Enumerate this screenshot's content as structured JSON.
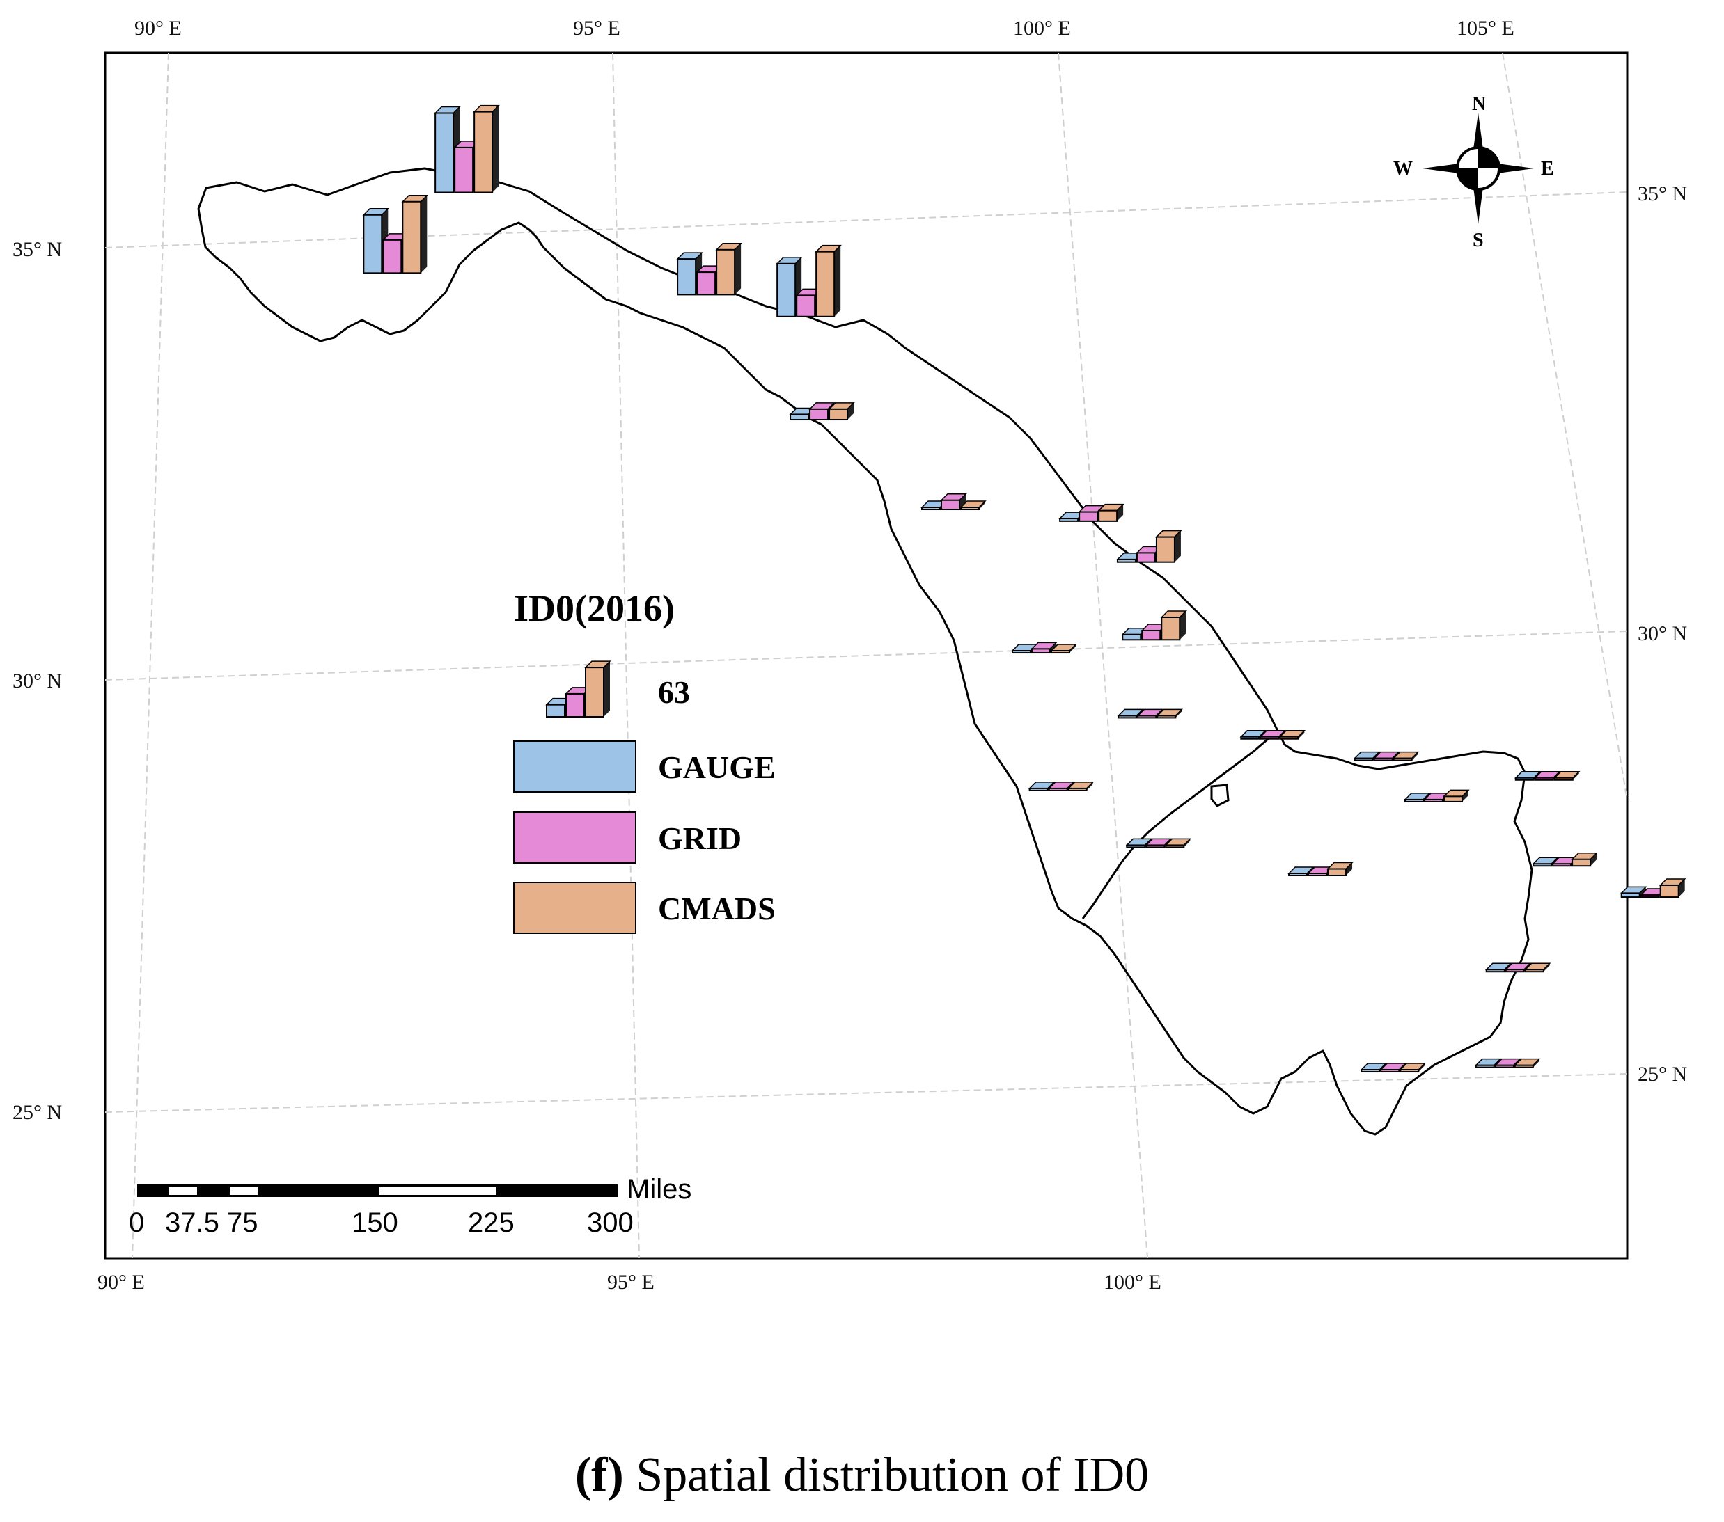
{
  "map": {
    "lon_ticks_top": [
      "90° E",
      "95° E",
      "100° E",
      "105° E"
    ],
    "lon_ticks_bottom": [
      "90° E",
      "95° E",
      "100° E"
    ],
    "lat_ticks_left": [
      "35° N",
      "30° N",
      "25° N"
    ],
    "lat_ticks_right": [
      "35° N",
      "30° N",
      "25° N"
    ]
  },
  "compass": {
    "n": "N",
    "s": "S",
    "e": "E",
    "w": "W"
  },
  "legend": {
    "title": "ID0(2016)",
    "sample_value": "63",
    "items": [
      {
        "label": "GAUGE",
        "color": "#9dc3e6"
      },
      {
        "label": "GRID",
        "color": "#e58ad6"
      },
      {
        "label": "CMADS",
        "color": "#e6b08a"
      }
    ]
  },
  "scale_bar": {
    "unit": "Miles",
    "labels": [
      "0",
      "37.5",
      "75",
      "150",
      "225",
      "300"
    ]
  },
  "caption": {
    "letter": "(f)",
    "text": " Spatial distribution of ID0"
  },
  "chart_data": {
    "type": "bar",
    "title": "ID0(2016)",
    "reference_value": 63,
    "series_names": [
      "GAUGE",
      "GRID",
      "CMADS"
    ],
    "stations": [
      {
        "lon": 92.5,
        "lat": 34.6,
        "values": [
          44,
          25,
          54
        ]
      },
      {
        "lon": 93.3,
        "lat": 35.5,
        "values": [
          60,
          34,
          61
        ]
      },
      {
        "lon": 96.0,
        "lat": 34.2,
        "values": [
          27,
          17,
          34
        ]
      },
      {
        "lon": 97.1,
        "lat": 33.9,
        "values": [
          40,
          16,
          49
        ]
      },
      {
        "lon": 97.2,
        "lat": 32.7,
        "values": [
          4,
          8,
          8
        ]
      },
      {
        "lon": 98.6,
        "lat": 31.6,
        "values": [
          1,
          7,
          1
        ]
      },
      {
        "lon": 100.1,
        "lat": 31.4,
        "values": [
          2,
          7,
          8
        ]
      },
      {
        "lon": 100.7,
        "lat": 30.9,
        "values": [
          2,
          7,
          19
        ]
      },
      {
        "lon": 99.5,
        "lat": 29.9,
        "values": [
          1,
          3,
          1
        ]
      },
      {
        "lon": 100.7,
        "lat": 30.0,
        "values": [
          4,
          7,
          17
        ]
      },
      {
        "lon": 100.6,
        "lat": 29.1,
        "values": [
          0,
          1,
          0
        ]
      },
      {
        "lon": 101.9,
        "lat": 28.8,
        "values": [
          0,
          1,
          1
        ]
      },
      {
        "lon": 99.6,
        "lat": 28.3,
        "values": [
          0,
          0,
          0
        ]
      },
      {
        "lon": 100.6,
        "lat": 27.6,
        "values": [
          0,
          1,
          1
        ]
      },
      {
        "lon": 103.1,
        "lat": 28.5,
        "values": [
          0,
          1,
          1
        ]
      },
      {
        "lon": 103.6,
        "lat": 28.0,
        "values": [
          1,
          1,
          4
        ]
      },
      {
        "lon": 104.8,
        "lat": 28.2,
        "values": [
          0,
          1,
          0
        ]
      },
      {
        "lon": 102.3,
        "lat": 27.2,
        "values": [
          0,
          1,
          5
        ]
      },
      {
        "lon": 104.9,
        "lat": 27.2,
        "values": [
          0,
          1,
          5
        ]
      },
      {
        "lon": 105.8,
        "lat": 26.8,
        "values": [
          3,
          1,
          9
        ]
      },
      {
        "lon": 104.3,
        "lat": 26.0,
        "values": [
          0,
          0,
          1
        ]
      },
      {
        "lon": 102.9,
        "lat": 24.9,
        "values": [
          0,
          1,
          0
        ]
      },
      {
        "lon": 104.1,
        "lat": 24.9,
        "values": [
          0,
          1,
          0
        ]
      }
    ]
  }
}
